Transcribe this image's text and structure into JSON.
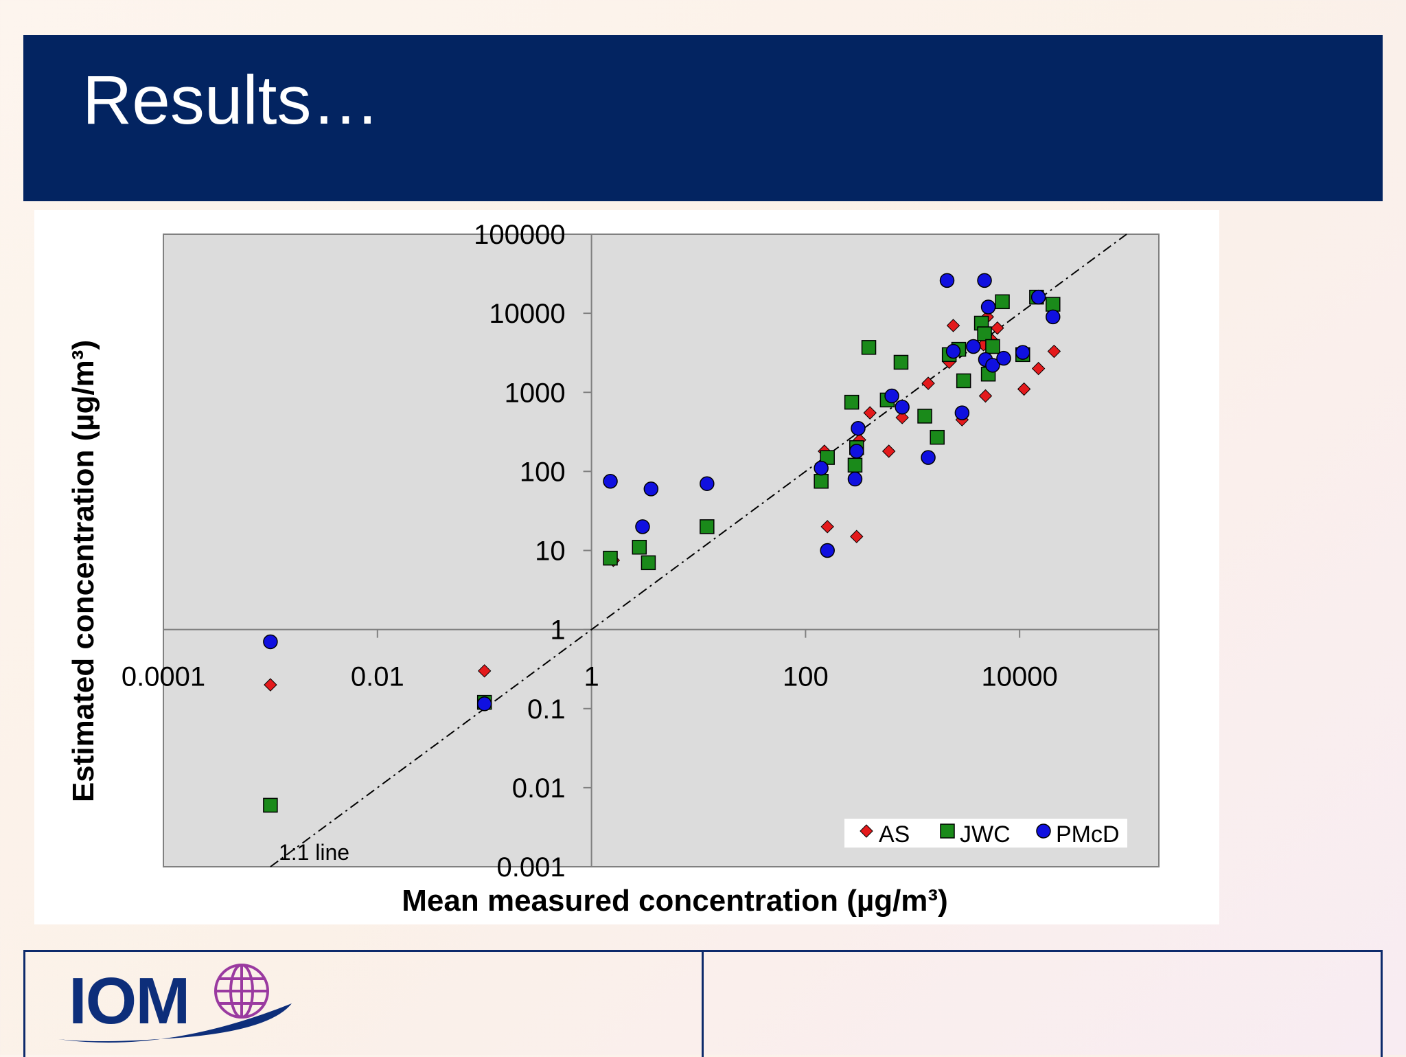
{
  "slide": {
    "title": "Results…"
  },
  "logo": {
    "text": "IOM"
  },
  "chart_data": {
    "type": "scatter",
    "xlabel": "Mean measured concentration (µg/m³)",
    "ylabel": "Estimated concentration (µg/m³)",
    "x_scale": "log",
    "y_scale": "log",
    "xlim": [
      0.0001,
      200000
    ],
    "ylim": [
      0.001,
      100000
    ],
    "x_ticks": [
      {
        "value": 0.0001,
        "label": "0.0001"
      },
      {
        "value": 0.01,
        "label": "0.01"
      },
      {
        "value": 1,
        "label": "1"
      },
      {
        "value": 100,
        "label": "100"
      },
      {
        "value": 10000,
        "label": "10000"
      }
    ],
    "y_ticks": [
      {
        "value": 0.001,
        "label": "0.001"
      },
      {
        "value": 0.01,
        "label": "0.01"
      },
      {
        "value": 0.1,
        "label": "0.1"
      },
      {
        "value": 1,
        "label": "1"
      },
      {
        "value": 10,
        "label": "10"
      },
      {
        "value": 100,
        "label": "100"
      },
      {
        "value": 1000,
        "label": "1000"
      },
      {
        "value": 10000,
        "label": "10000"
      },
      {
        "value": 100000,
        "label": "100000"
      }
    ],
    "grid": false,
    "legend_position": "bottom-right",
    "reference_line": {
      "label": "1:1 line",
      "style": "dash-dot"
    },
    "series": [
      {
        "name": "AS",
        "marker": "diamond",
        "color": "#e41a1c",
        "points": [
          [
            0.001,
            0.2
          ],
          [
            0.1,
            0.3
          ],
          [
            1.6,
            7.5
          ],
          [
            150,
            180
          ],
          [
            160,
            20
          ],
          [
            300,
            15
          ],
          [
            320,
            250
          ],
          [
            400,
            550
          ],
          [
            600,
            180
          ],
          [
            800,
            480
          ],
          [
            1400,
            1300
          ],
          [
            2200,
            2400
          ],
          [
            2400,
            7000
          ],
          [
            2900,
            450
          ],
          [
            4600,
            4000
          ],
          [
            4800,
            900
          ],
          [
            5000,
            9000
          ],
          [
            5600,
            4500
          ],
          [
            6200,
            6500
          ],
          [
            11000,
            1100
          ],
          [
            15000,
            2000
          ],
          [
            21000,
            3300
          ]
        ]
      },
      {
        "name": "JWC",
        "marker": "square",
        "color": "#1a8a1a",
        "points": [
          [
            0.001,
            0.006
          ],
          [
            0.1,
            0.12
          ],
          [
            1.5,
            8
          ],
          [
            2.8,
            11
          ],
          [
            3.4,
            7
          ],
          [
            12,
            20
          ],
          [
            140,
            75
          ],
          [
            160,
            150
          ],
          [
            270,
            750
          ],
          [
            290,
            120
          ],
          [
            300,
            200
          ],
          [
            390,
            3700
          ],
          [
            580,
            800
          ],
          [
            780,
            2400
          ],
          [
            1300,
            500
          ],
          [
            1700,
            270
          ],
          [
            2200,
            3000
          ],
          [
            2700,
            3500
          ],
          [
            3000,
            1400
          ],
          [
            4400,
            7500
          ],
          [
            4700,
            5500
          ],
          [
            5100,
            1700
          ],
          [
            5600,
            3800
          ],
          [
            6900,
            14000
          ],
          [
            10700,
            3000
          ],
          [
            14400,
            16000
          ],
          [
            20500,
            13000
          ]
        ]
      },
      {
        "name": "PMcD",
        "marker": "circle",
        "color": "#1010e0",
        "points": [
          [
            0.001,
            0.7
          ],
          [
            0.1,
            0.115
          ],
          [
            1.5,
            75
          ],
          [
            3,
            20
          ],
          [
            3.6,
            60
          ],
          [
            12,
            70
          ],
          [
            140,
            110
          ],
          [
            160,
            10
          ],
          [
            290,
            80
          ],
          [
            300,
            180
          ],
          [
            310,
            350
          ],
          [
            640,
            900
          ],
          [
            800,
            650
          ],
          [
            1400,
            150
          ],
          [
            2100,
            26000
          ],
          [
            2400,
            3300
          ],
          [
            2900,
            550
          ],
          [
            3700,
            3800
          ],
          [
            4700,
            26000
          ],
          [
            4800,
            2600
          ],
          [
            5100,
            12000
          ],
          [
            5600,
            2200
          ],
          [
            7100,
            2700
          ],
          [
            10700,
            3200
          ],
          [
            15000,
            16000
          ],
          [
            20500,
            9000
          ]
        ]
      }
    ]
  }
}
